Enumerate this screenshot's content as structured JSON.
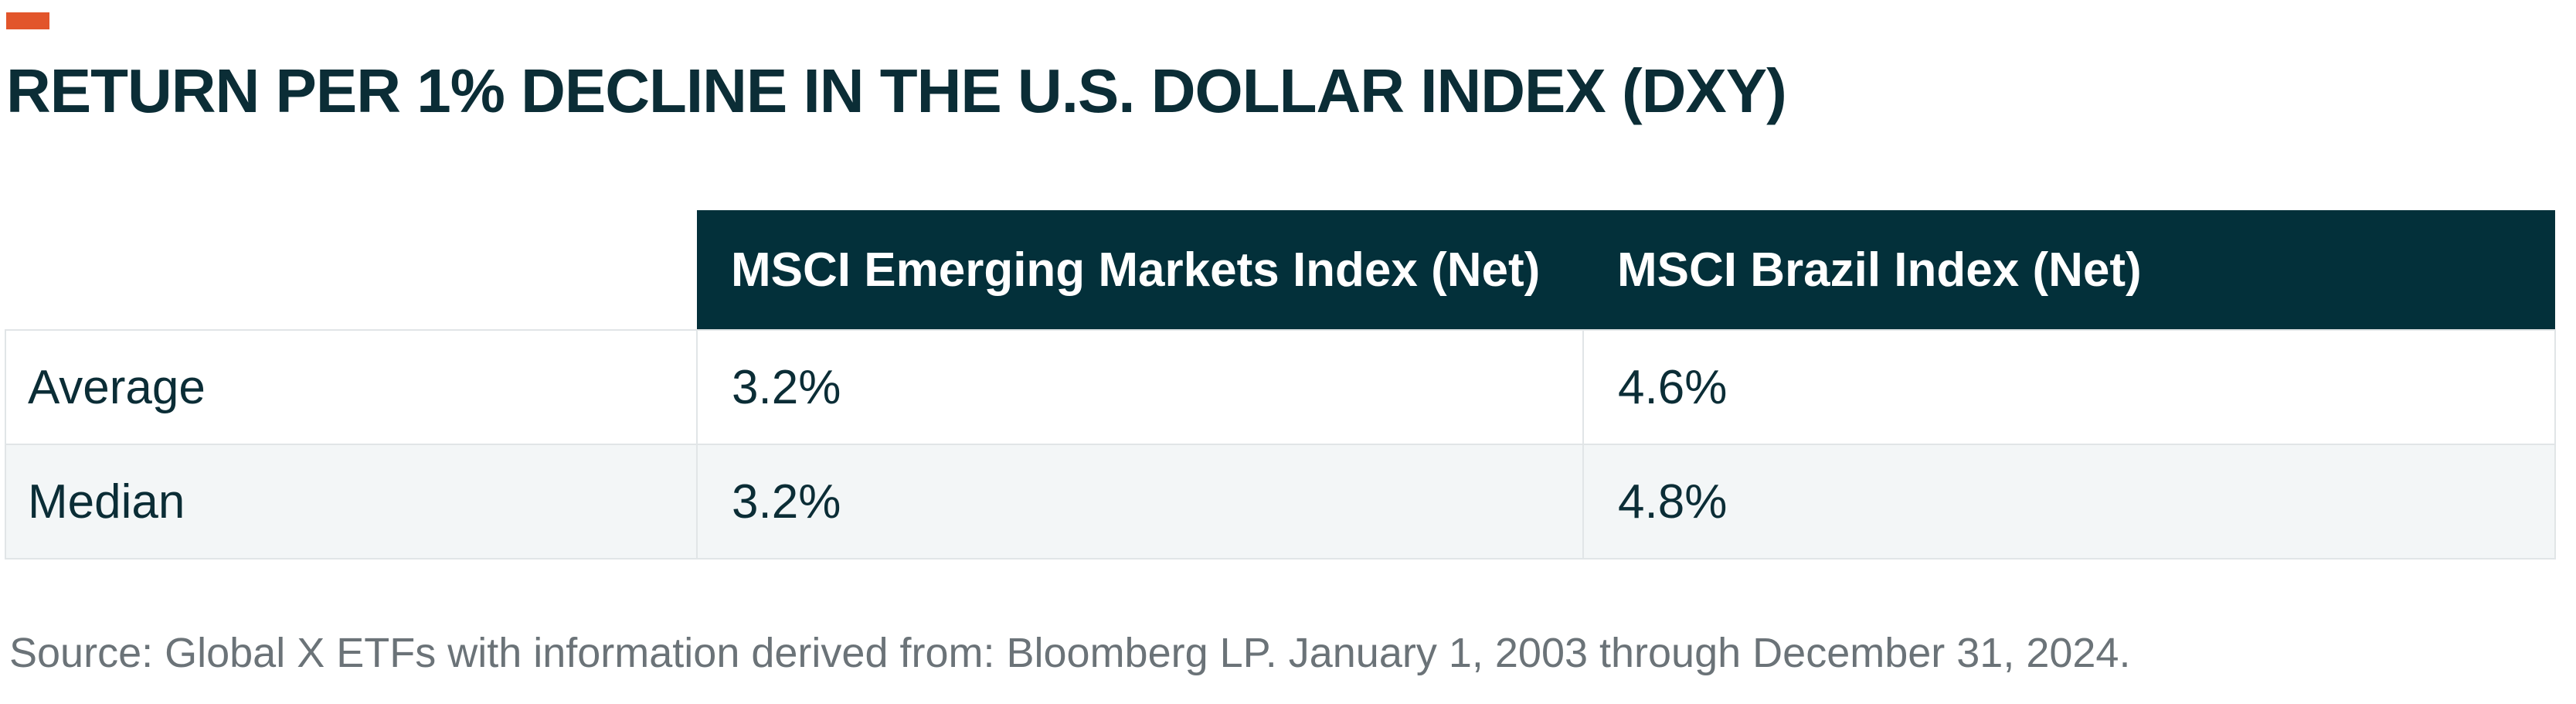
{
  "colors": {
    "accent": "#E2552B",
    "title": "#0B2D36",
    "header_background": "#03303A",
    "header_text": "#FFFFFF",
    "row_alt_background": "#F3F6F7",
    "border": "#E1E5E7",
    "source_text": "#6B7378"
  },
  "title": "RETURN PER 1% DECLINE IN THE U.S. DOLLAR INDEX (DXY)",
  "table": {
    "columns": [
      "",
      "MSCI Emerging Markets Index (Net)",
      "MSCI Brazil Index (Net)"
    ],
    "rows": [
      {
        "label": "Average",
        "values": [
          "3.2%",
          "4.6%"
        ]
      },
      {
        "label": "Median",
        "values": [
          "3.2%",
          "4.8%"
        ]
      }
    ]
  },
  "source": "Source: Global X ETFs with information derived from: Bloomberg LP. January 1, 2003 through December 31, 2024."
}
